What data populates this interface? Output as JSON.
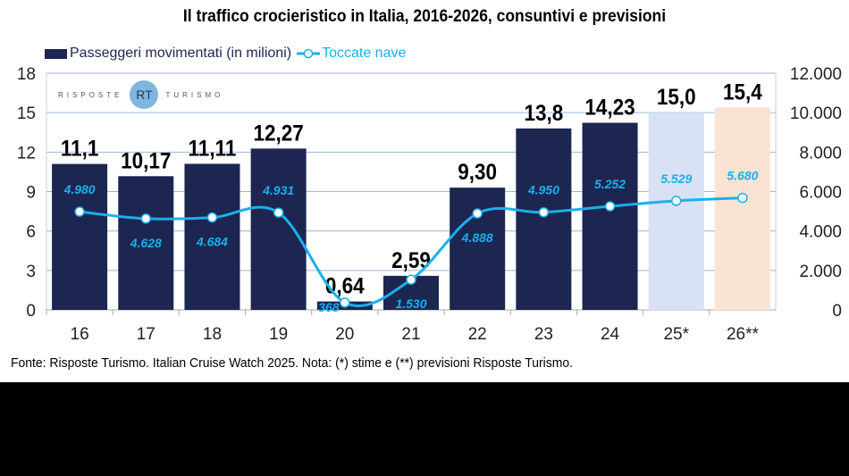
{
  "chart_data": {
    "type": "bar",
    "title": "Il traffico crocieristico in Italia, 2016-2026, consuntivi e previsioni",
    "categories": [
      "16",
      "17",
      "18",
      "19",
      "20",
      "21",
      "22",
      "23",
      "24",
      "25*",
      "26**"
    ],
    "series": [
      {
        "name": "Passeggeri movimentati (in milioni)",
        "type": "bar",
        "axis": "left",
        "values": [
          11.1,
          10.17,
          11.11,
          12.27,
          0.64,
          2.59,
          9.3,
          13.8,
          14.23,
          15.0,
          15.4
        ],
        "labels": [
          "11,1",
          "10,17",
          "11,11",
          "12,27",
          "0,64",
          "2,59",
          "9,30",
          "13,8",
          "14,23",
          "15,0",
          "15,4"
        ],
        "color": "#1c2651"
      },
      {
        "name": "Toccate nave",
        "type": "line",
        "axis": "right",
        "values": [
          4980,
          4628,
          4684,
          4931,
          368,
          1530,
          4888,
          4950,
          5252,
          5529,
          5680
        ],
        "labels": [
          "4.980",
          "4.628",
          "4.684",
          "4.931",
          "368",
          "1.530",
          "4.888",
          "4.950",
          "5.252",
          "5.529",
          "5.680"
        ],
        "color": "#1ab0ec"
      }
    ],
    "bar_colors_special": {
      "25*": "#d9e1f4",
      "26**": "#fbe3d4"
    },
    "y_left": {
      "range": [
        0,
        18
      ],
      "ticks": [
        "0",
        "3",
        "6",
        "9",
        "12",
        "15",
        "18"
      ]
    },
    "y_right": {
      "range": [
        0,
        12000
      ],
      "ticks": [
        "0",
        "2.000",
        "4.000",
        "6.000",
        "8.000",
        "10.000",
        "12.000"
      ]
    },
    "grid": true,
    "legend": "top-left"
  },
  "logo": {
    "left": "RISPOSTE",
    "mark": "RT",
    "right": "TURISMO"
  },
  "source": "Fonte: Risposte Turismo. Italian Cruise Watch 2025. Nota: (*) stime e (**) previsioni Risposte Turismo."
}
